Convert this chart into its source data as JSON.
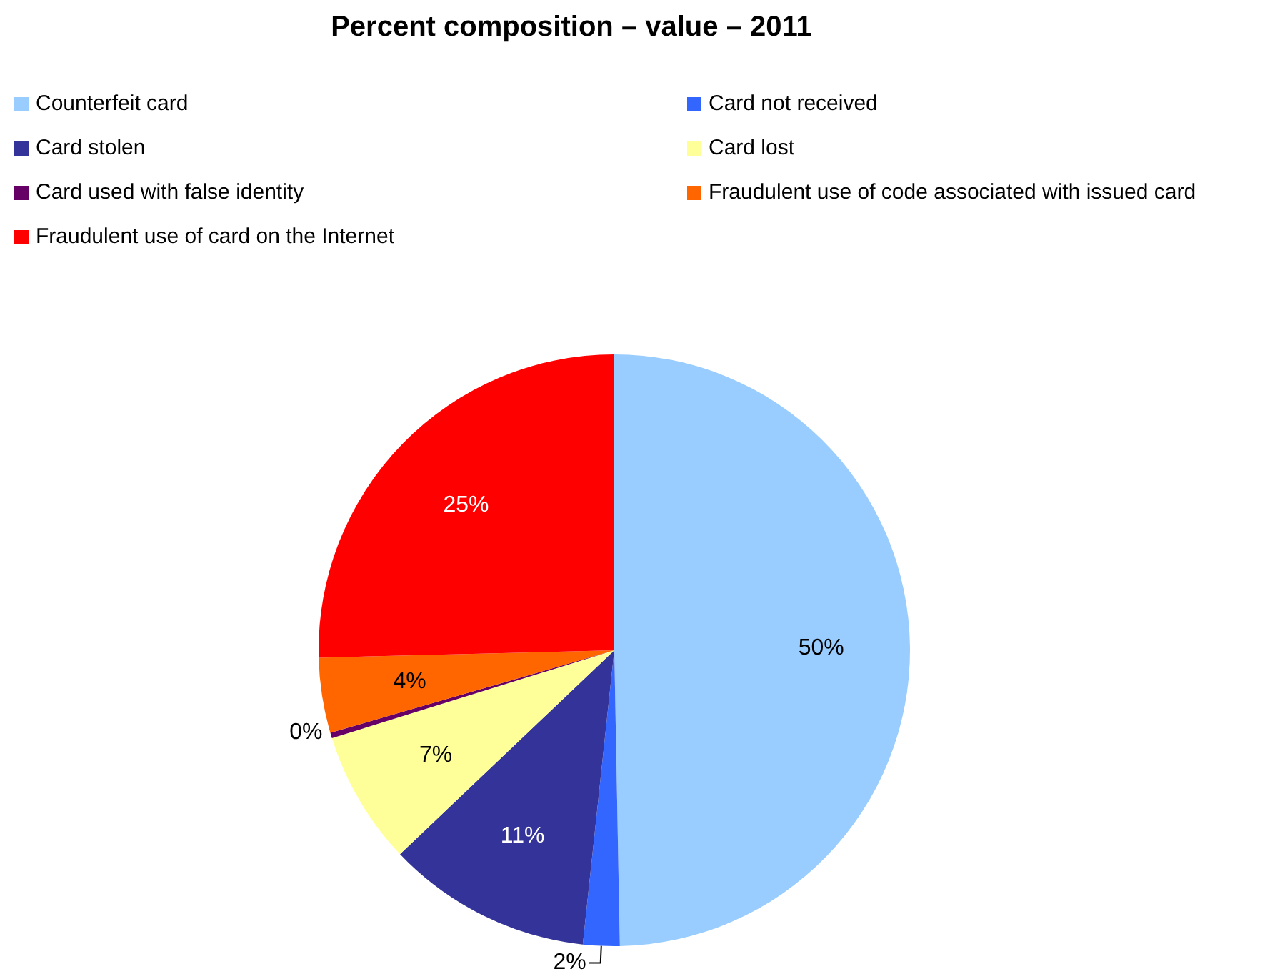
{
  "chart_data": {
    "type": "pie",
    "title": "Percent composition – value – 2011",
    "categories": [
      "Counterfeit card",
      "Card not received",
      "Card stolen",
      "Card lost",
      "Card used with false identity",
      "Fraudulent use of code associated with issued card",
      "Fraudulent use of card on the Internet"
    ],
    "values": [
      49.7,
      2,
      11.2,
      7.3,
      0.3,
      4.1,
      25.4
    ],
    "value_labels": [
      "50%",
      "2%",
      "11%",
      "7%",
      "0%",
      "4%",
      "25%"
    ],
    "colors": [
      "#99ccff",
      "#3366ff",
      "#333399",
      "#ffff99",
      "#660066",
      "#ff6600",
      "#ff0000"
    ],
    "legend": "top"
  }
}
